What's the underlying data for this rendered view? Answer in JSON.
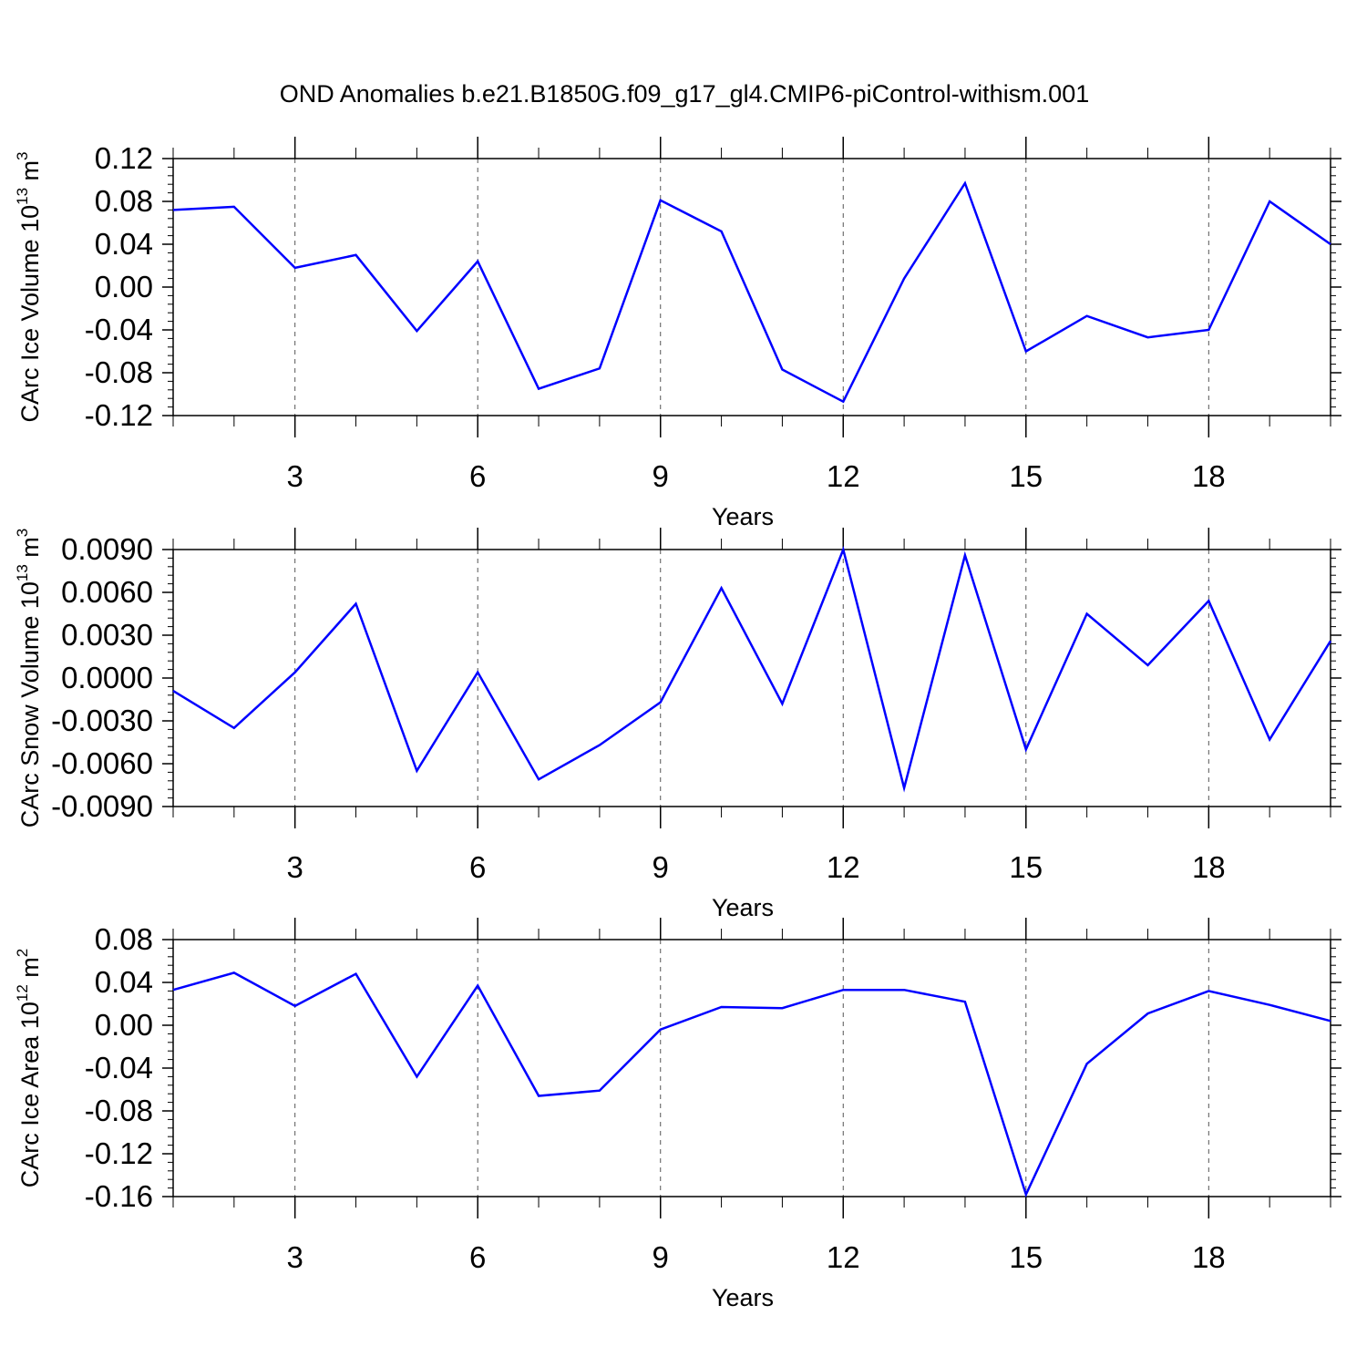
{
  "title": "OND Anomalies b.e21.B1850G.f09_g17_gl4.CMIP6-piControl-withism.001",
  "colors": {
    "line": "#0000ff",
    "axis": "#000000",
    "grid": "#555555",
    "background": "#ffffff"
  },
  "chart_data": [
    {
      "type": "line",
      "xlabel": "Years",
      "ylabel": {
        "prefix": "CArc Ice Volume 10",
        "exponent": "13",
        "suffix": " m",
        "unit_exponent": "3"
      },
      "xlim": [
        1,
        20
      ],
      "ylim": [
        -0.12,
        0.12
      ],
      "x_ticks": [
        "3",
        "6",
        "9",
        "12",
        "15",
        "18"
      ],
      "y_ticks": [
        "-0.12",
        "-0.08",
        "-0.04",
        "0.00",
        "0.04",
        "0.08",
        "0.12"
      ],
      "grid": "vertical dashed at major x ticks",
      "series": [
        {
          "x": [
            1,
            2,
            3,
            4,
            5,
            6,
            7,
            8,
            9,
            10,
            11,
            12,
            13,
            14,
            15,
            16,
            17,
            18,
            19,
            20
          ],
          "values": [
            0.072,
            0.075,
            0.018,
            0.03,
            -0.041,
            0.024,
            -0.095,
            -0.076,
            0.081,
            0.052,
            -0.077,
            -0.107,
            0.008,
            0.097,
            -0.06,
            -0.027,
            -0.047,
            -0.04,
            0.08,
            0.04
          ]
        }
      ]
    },
    {
      "type": "line",
      "xlabel": "Years",
      "ylabel": {
        "prefix": "CArc Snow Volume 10",
        "exponent": "13",
        "suffix": " m",
        "unit_exponent": "3"
      },
      "xlim": [
        1,
        20
      ],
      "ylim": [
        -0.009,
        0.009
      ],
      "x_ticks": [
        "3",
        "6",
        "9",
        "12",
        "15",
        "18"
      ],
      "y_ticks": [
        "-0.0090",
        "-0.0060",
        "-0.0030",
        "0.0000",
        "0.0030",
        "0.0060",
        "0.0090"
      ],
      "grid": "vertical dashed at major x ticks",
      "series": [
        {
          "x": [
            1,
            2,
            3,
            4,
            5,
            6,
            7,
            8,
            9,
            10,
            11,
            12,
            13,
            14,
            15,
            16,
            17,
            18,
            19,
            20
          ],
          "values": [
            -0.0009,
            -0.0035,
            0.0004,
            0.0052,
            -0.0065,
            0.0004,
            -0.0071,
            -0.0047,
            -0.0017,
            0.0063,
            -0.0018,
            0.009,
            -0.0077,
            0.0086,
            -0.005,
            0.0045,
            0.0009,
            0.0054,
            -0.0043,
            0.0026
          ]
        }
      ]
    },
    {
      "type": "line",
      "xlabel": "Years",
      "ylabel": {
        "prefix": "CArc Ice Area 10",
        "exponent": "12",
        "suffix": " m",
        "unit_exponent": "2"
      },
      "xlim": [
        1,
        20
      ],
      "ylim": [
        -0.16,
        0.08
      ],
      "x_ticks": [
        "3",
        "6",
        "9",
        "12",
        "15",
        "18"
      ],
      "y_ticks": [
        "-0.16",
        "-0.12",
        "-0.08",
        "-0.04",
        "0.00",
        "0.04",
        "0.08"
      ],
      "grid": "vertical dashed at major x ticks",
      "series": [
        {
          "x": [
            1,
            2,
            3,
            4,
            5,
            6,
            7,
            8,
            9,
            10,
            11,
            12,
            13,
            14,
            15,
            16,
            17,
            18,
            19,
            20
          ],
          "values": [
            0.033,
            0.049,
            0.018,
            0.048,
            -0.048,
            0.037,
            -0.066,
            -0.061,
            -0.004,
            0.017,
            0.016,
            0.033,
            0.033,
            0.022,
            -0.158,
            -0.036,
            0.011,
            0.032,
            0.019,
            0.004
          ]
        }
      ]
    }
  ]
}
